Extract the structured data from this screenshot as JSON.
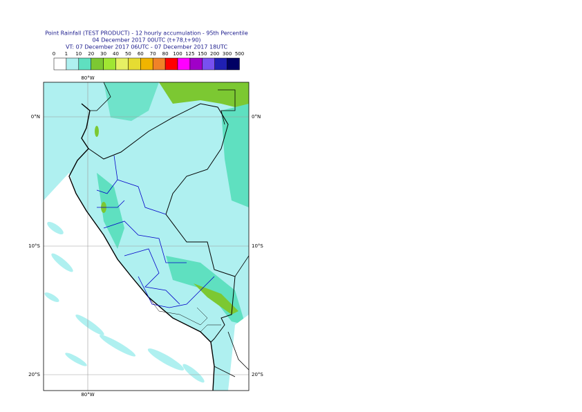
{
  "header": {
    "title": [
      "Point Rainfall (TEST PRODUCT) - 12 hourly accumulation - 95th Percentile",
      "04 December 2017 00UTC (t+78,t+90)",
      "VT: 07 December 2017 06UTC - 07 December 2017 18UTC"
    ]
  },
  "legend": {
    "thresholds": [
      0,
      1,
      10,
      20,
      30,
      40,
      50,
      60,
      70,
      80,
      100,
      125,
      150,
      200,
      300,
      500
    ],
    "colors": [
      "#ffffff",
      "#aff0f0",
      "#5fe0c0",
      "#7cc832",
      "#a0e632",
      "#e6f064",
      "#e6dc32",
      "#f0b400",
      "#f08228",
      "#ff0000",
      "#ff00ff",
      "#a000c8",
      "#7850f0",
      "#2020b4",
      "#000064"
    ]
  },
  "map": {
    "lon_labels": [
      "80°W"
    ],
    "lat_labels": [
      "0°N",
      "10°S",
      "20°S"
    ]
  }
}
